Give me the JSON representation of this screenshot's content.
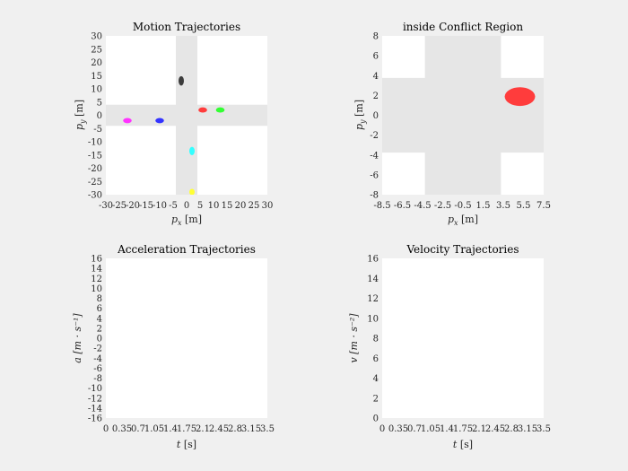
{
  "charts": {
    "motion": {
      "title": "Motion Trajectories",
      "xlabel_var": "p",
      "xlabel_sub": "x",
      "xlabel_unit": "[m]",
      "ylabel_var": "p",
      "ylabel_sub": "y",
      "ylabel_unit": "[m]",
      "xticks": [
        "-30",
        "-25",
        "-20",
        "-15",
        "-10",
        "-5",
        "0",
        "5",
        "10",
        "15",
        "20",
        "25",
        "30"
      ],
      "yticks": [
        "30",
        "25",
        "20",
        "15",
        "10",
        "5",
        "0",
        "-5",
        "-10",
        "-15",
        "-20",
        "-25",
        "-30"
      ]
    },
    "conflict": {
      "title": "inside Conflict Region",
      "xlabel_var": "p",
      "xlabel_sub": "x",
      "xlabel_unit": "[m]",
      "ylabel_var": "p",
      "ylabel_sub": "y",
      "ylabel_unit": "[m]",
      "xticks": [
        "-8.5",
        "-6.5",
        "-4.5",
        "-2.5",
        "-0.5",
        "1.5",
        "3.5",
        "5.5",
        "7.5"
      ],
      "yticks": [
        "8",
        "6",
        "4",
        "2",
        "0",
        "-2",
        "-4",
        "-6",
        "-8"
      ]
    },
    "accel": {
      "title": "Acceleration Trajectories",
      "xlabel_var": "t",
      "xlabel_unit": "[s]",
      "ylabel_var": "a",
      "ylabel_unit": "[m · s⁻¹]",
      "xticks": [
        "0",
        "0.35",
        "0.7",
        "1.05",
        "1.4",
        "1.75",
        "2.1",
        "2.45",
        "2.8",
        "3.15",
        "3.5"
      ],
      "yticks": [
        "16",
        "14",
        "12",
        "10",
        "8",
        "6",
        "4",
        "2",
        "0",
        "-2",
        "-4",
        "-6",
        "-8",
        "-10",
        "-12",
        "-14",
        "-16"
      ]
    },
    "velocity": {
      "title": "Velocity Trajectories",
      "xlabel_var": "t",
      "xlabel_unit": "[s]",
      "ylabel_var": "v",
      "ylabel_unit": "[m · s⁻²]",
      "xticks": [
        "0",
        "0.35",
        "0.7",
        "1.05",
        "1.4",
        "1.75",
        "2.1",
        "2.45",
        "2.8",
        "3.15",
        "3.5"
      ],
      "yticks": [
        "16",
        "14",
        "12",
        "10",
        "8",
        "6",
        "4",
        "2",
        "0"
      ]
    }
  },
  "chart_data": [
    {
      "type": "scatter",
      "title": "Motion Trajectories",
      "xlim": [
        -30,
        30
      ],
      "ylim": [
        -30,
        30
      ],
      "road": {
        "color": "#e6e6e6",
        "vertical_x": [
          -4,
          4
        ],
        "horizontal_y": [
          -4,
          4
        ]
      },
      "points": [
        {
          "x": -2,
          "y": 13,
          "color": "#3c3c3c",
          "rx": 1.0,
          "ry": 1.8
        },
        {
          "x": 6,
          "y": 2,
          "color": "#ff3c3c",
          "rx": 1.6,
          "ry": 1.0
        },
        {
          "x": 12.5,
          "y": 2,
          "color": "#33ff33",
          "rx": 1.6,
          "ry": 1.0
        },
        {
          "x": -22,
          "y": -2,
          "color": "#ff33ff",
          "rx": 1.6,
          "ry": 1.0
        },
        {
          "x": -10,
          "y": -2,
          "color": "#3333ff",
          "rx": 1.6,
          "ry": 1.0
        },
        {
          "x": 2,
          "y": -13.5,
          "color": "#33ffff",
          "rx": 1.0,
          "ry": 1.6
        },
        {
          "x": 2,
          "y": -29,
          "color": "#ffff33",
          "rx": 1.0,
          "ry": 1.2
        }
      ]
    },
    {
      "type": "scatter",
      "title": "inside Conflict Region",
      "xlim": [
        -8.5,
        8.5
      ],
      "ylim": [
        -8.5,
        8.5
      ],
      "road": {
        "color": "#e6e6e6",
        "vertical_x": [
          -4,
          4
        ],
        "horizontal_y": [
          -4,
          4
        ]
      },
      "points": [
        {
          "x": 6,
          "y": 2,
          "color": "#ff3c3c",
          "rx": 1.6,
          "ry": 1.0
        }
      ]
    },
    {
      "type": "line",
      "title": "Acceleration Trajectories",
      "xlim": [
        0,
        3.5
      ],
      "ylim": [
        -16,
        16
      ],
      "series": []
    },
    {
      "type": "line",
      "title": "Velocity Trajectories",
      "xlim": [
        0,
        3.5
      ],
      "ylim": [
        0,
        16
      ],
      "series": []
    }
  ]
}
